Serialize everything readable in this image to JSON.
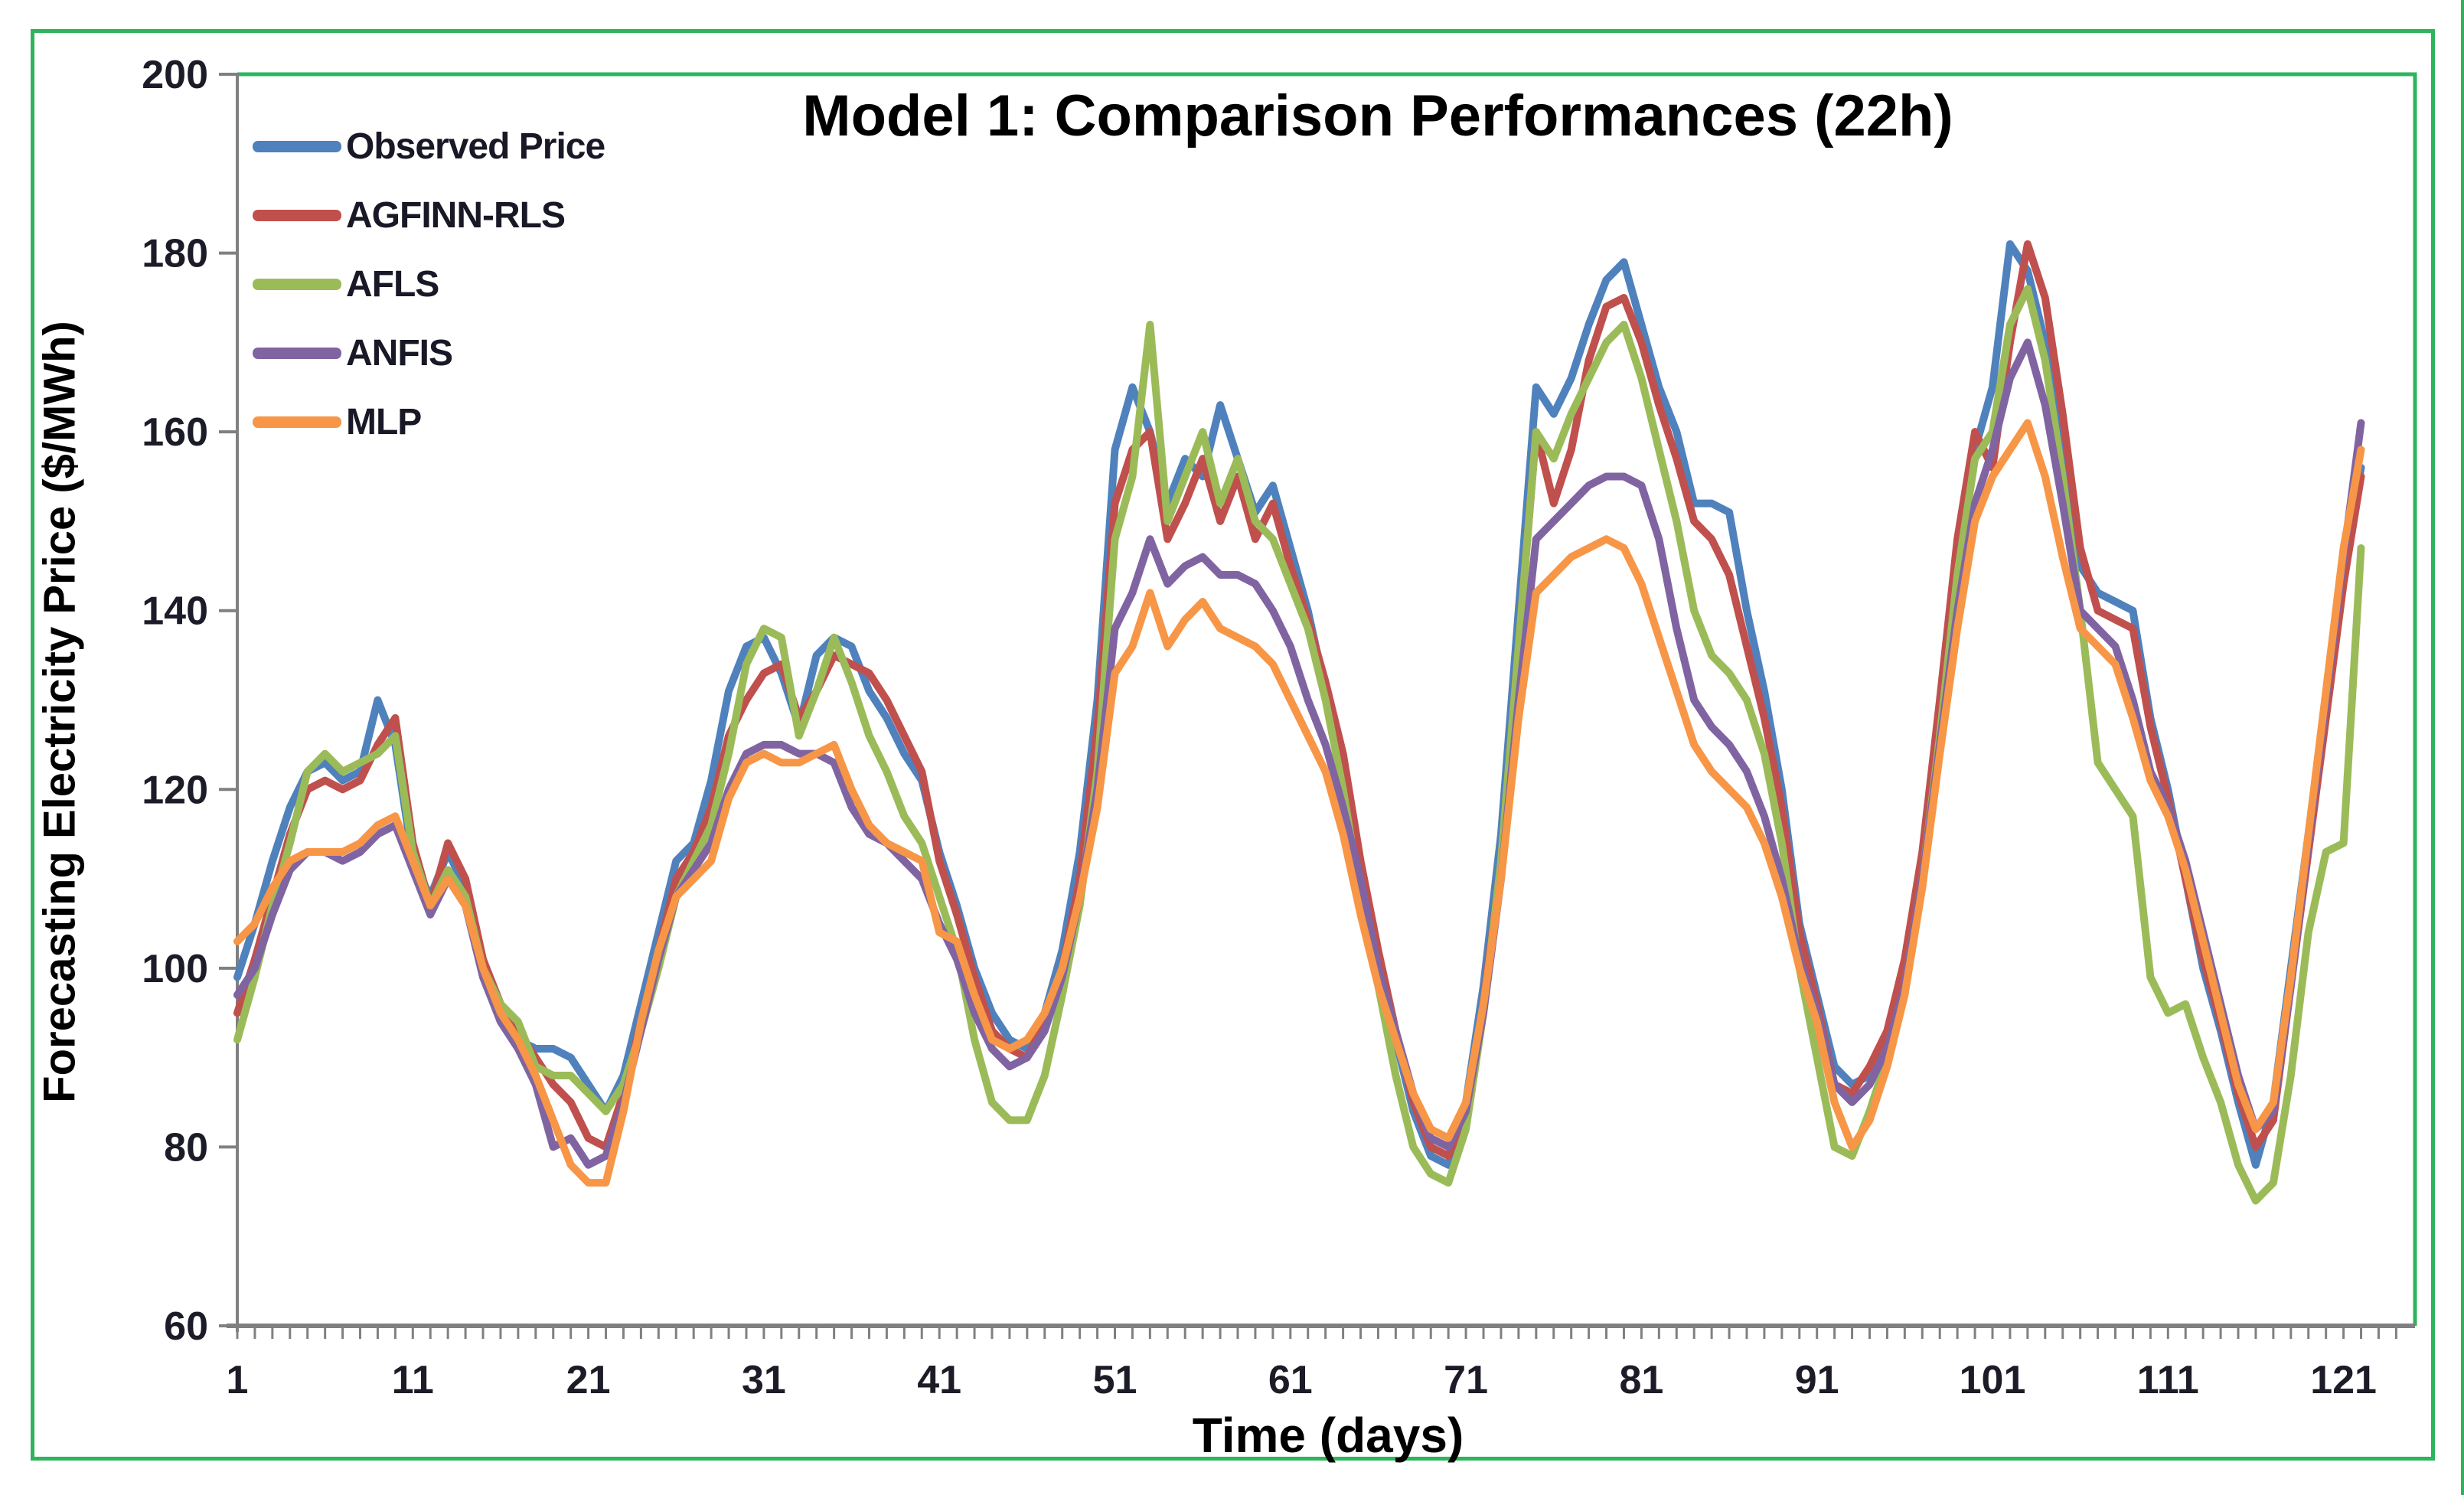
{
  "figure": {
    "frame_color": "#2db45c",
    "plot_border_color": "#2db45c",
    "axis_color": "#808080",
    "tick_label_color": "#1c1c28"
  },
  "chart_data": {
    "type": "line",
    "title": "Model 1: Comparison Performances (22h)",
    "xlabel": "Time (days)",
    "ylabel": "Forecasting Electricity Price ($/MWh)",
    "ylim": [
      60,
      200
    ],
    "yticks": [
      60,
      80,
      100,
      120,
      140,
      160,
      180,
      200
    ],
    "xticks": [
      1,
      11,
      21,
      31,
      41,
      51,
      61,
      71,
      81,
      91,
      101,
      111,
      121
    ],
    "x_minor_tick_every_day": true,
    "grid": "off",
    "legend_position": "top-left-vertical",
    "x_days_start": 1,
    "x_days_end": 122,
    "series": [
      {
        "name": "Observed Price",
        "color": "#4F81BD",
        "values": [
          99,
          105,
          112,
          118,
          122,
          123,
          121,
          122,
          130,
          125,
          112,
          108,
          113,
          109,
          101,
          95,
          92,
          91,
          91,
          90,
          87,
          84,
          88,
          96,
          104,
          112,
          114,
          121,
          131,
          136,
          137,
          133,
          127,
          135,
          137,
          136,
          131,
          128,
          124,
          121,
          113,
          107,
          100,
          95,
          92,
          91,
          95,
          102,
          113,
          130,
          158,
          165,
          160,
          152,
          157,
          155,
          163,
          157,
          151,
          154,
          147,
          140,
          131,
          122,
          110,
          100,
          92,
          84,
          79,
          78,
          85,
          98,
          115,
          140,
          165,
          162,
          166,
          172,
          177,
          179,
          172,
          165,
          160,
          152,
          152,
          151,
          140,
          131,
          120,
          105,
          97,
          89,
          87,
          88,
          92,
          100,
          112,
          128,
          146,
          158,
          165,
          181,
          178,
          170,
          160,
          145,
          142,
          141,
          140,
          128,
          120,
          110,
          100,
          93,
          85,
          78,
          85,
          100,
          115,
          130,
          145,
          156
        ]
      },
      {
        "name": "AGFINN-RLS",
        "color": "#C0504D",
        "values": [
          95,
          101,
          108,
          115,
          120,
          121,
          120,
          121,
          125,
          128,
          114,
          107,
          114,
          110,
          101,
          96,
          93,
          90,
          87,
          85,
          81,
          80,
          86,
          94,
          102,
          110,
          113,
          118,
          126,
          130,
          133,
          134,
          128,
          131,
          135,
          134,
          133,
          130,
          126,
          122,
          112,
          106,
          99,
          93,
          91,
          90,
          94,
          100,
          110,
          127,
          152,
          158,
          160,
          148,
          152,
          157,
          150,
          155,
          148,
          152,
          145,
          139,
          132,
          124,
          112,
          102,
          93,
          85,
          80,
          79,
          84,
          96,
          112,
          136,
          160,
          152,
          158,
          168,
          174,
          175,
          170,
          163,
          157,
          150,
          148,
          144,
          136,
          128,
          118,
          104,
          96,
          87,
          86,
          89,
          93,
          101,
          113,
          130,
          148,
          160,
          156,
          170,
          181,
          175,
          162,
          147,
          140,
          139,
          138,
          127,
          119,
          110,
          101,
          94,
          86,
          80,
          83,
          98,
          113,
          128,
          143,
          155
        ]
      },
      {
        "name": "AFLS",
        "color": "#9BBB59",
        "values": [
          92,
          99,
          107,
          114,
          122,
          124,
          122,
          123,
          124,
          126,
          113,
          107,
          111,
          108,
          100,
          96,
          94,
          89,
          88,
          88,
          86,
          84,
          87,
          93,
          100,
          108,
          112,
          116,
          124,
          134,
          138,
          137,
          126,
          131,
          137,
          132,
          126,
          122,
          117,
          114,
          108,
          102,
          92,
          85,
          83,
          83,
          88,
          97,
          107,
          122,
          148,
          155,
          172,
          150,
          155,
          160,
          152,
          157,
          150,
          148,
          143,
          138,
          130,
          120,
          108,
          98,
          88,
          80,
          77,
          76,
          82,
          95,
          112,
          136,
          160,
          157,
          162,
          166,
          170,
          172,
          166,
          158,
          150,
          140,
          135,
          133,
          130,
          124,
          114,
          100,
          90,
          80,
          79,
          84,
          90,
          98,
          110,
          126,
          144,
          157,
          160,
          172,
          176,
          168,
          155,
          140,
          123,
          120,
          117,
          99,
          95,
          96,
          90,
          85,
          78,
          74,
          76,
          88,
          104,
          113,
          114,
          147
        ]
      },
      {
        "name": "ANFIS",
        "color": "#8064A2",
        "values": [
          97,
          100,
          106,
          111,
          113,
          113,
          112,
          113,
          115,
          116,
          111,
          106,
          110,
          107,
          99,
          94,
          91,
          87,
          80,
          81,
          78,
          79,
          85,
          93,
          101,
          108,
          111,
          114,
          120,
          124,
          125,
          125,
          124,
          124,
          123,
          118,
          115,
          114,
          112,
          110,
          105,
          101,
          95,
          91,
          89,
          90,
          93,
          99,
          108,
          120,
          138,
          142,
          148,
          143,
          145,
          146,
          144,
          144,
          143,
          140,
          136,
          130,
          125,
          118,
          110,
          100,
          93,
          86,
          81,
          80,
          84,
          95,
          110,
          130,
          148,
          150,
          152,
          154,
          155,
          155,
          154,
          148,
          138,
          130,
          127,
          125,
          122,
          117,
          110,
          101,
          95,
          87,
          85,
          87,
          91,
          98,
          110,
          125,
          140,
          152,
          158,
          166,
          170,
          163,
          152,
          140,
          138,
          136,
          130,
          122,
          118,
          112,
          104,
          96,
          88,
          82,
          84,
          98,
          114,
          130,
          146,
          161
        ]
      },
      {
        "name": "MLP",
        "color": "#F79646",
        "values": [
          103,
          105,
          109,
          112,
          113,
          113,
          113,
          114,
          116,
          117,
          112,
          107,
          110,
          107,
          100,
          95,
          92,
          88,
          83,
          78,
          76,
          76,
          84,
          94,
          102,
          108,
          110,
          112,
          119,
          123,
          124,
          123,
          123,
          124,
          125,
          120,
          116,
          114,
          113,
          112,
          104,
          103,
          97,
          92,
          91,
          92,
          95,
          100,
          108,
          118,
          133,
          136,
          142,
          136,
          139,
          141,
          138,
          137,
          136,
          134,
          130,
          126,
          122,
          115,
          106,
          98,
          92,
          86,
          82,
          81,
          85,
          96,
          110,
          128,
          142,
          144,
          146,
          147,
          148,
          147,
          143,
          137,
          131,
          125,
          122,
          120,
          118,
          114,
          108,
          100,
          94,
          85,
          80,
          83,
          89,
          97,
          109,
          124,
          138,
          150,
          155,
          158,
          161,
          155,
          146,
          138,
          136,
          134,
          128,
          121,
          117,
          111,
          103,
          95,
          87,
          82,
          85,
          99,
          115,
          131,
          147,
          158
        ]
      }
    ]
  }
}
